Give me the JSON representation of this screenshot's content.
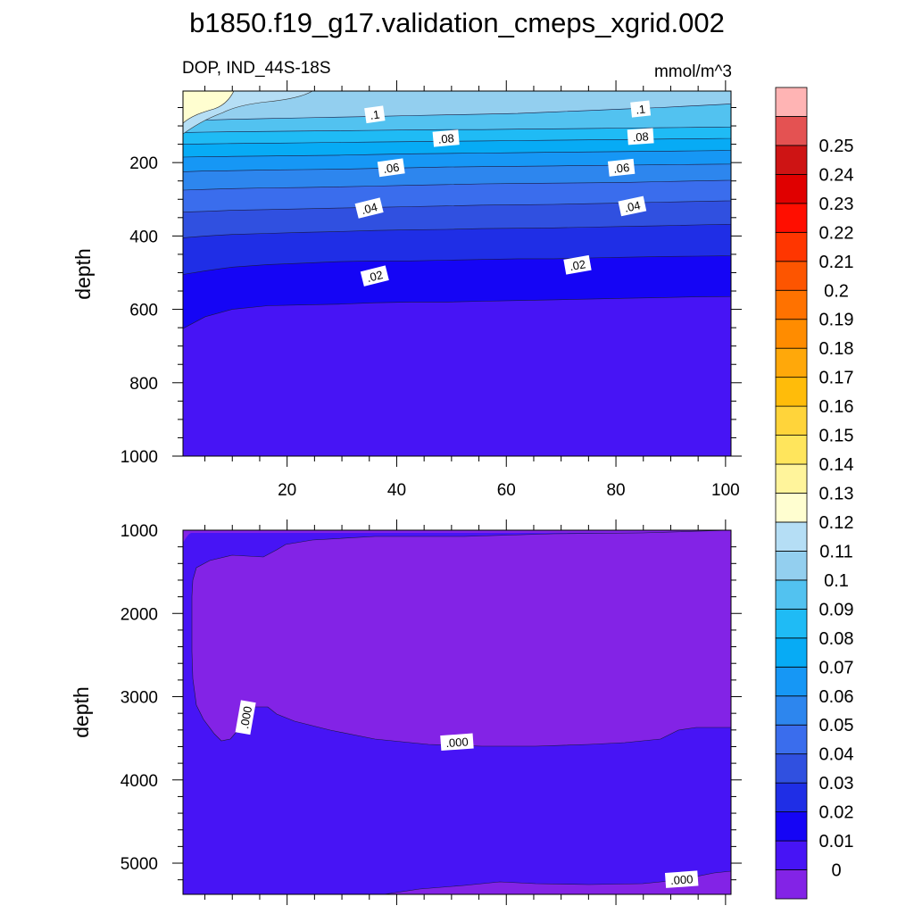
{
  "chart_data": {
    "type": "contour",
    "title": "b1850.f19_g17.validation_cmeps_xgrid.002",
    "variable_label": "DOP, IND_44S-18S",
    "units_label": "mmol/m^3",
    "colorbar": {
      "labels": [
        "0",
        "0.01",
        "0.02",
        "0.03",
        "0.04",
        "0.05",
        "0.06",
        "0.07",
        "0.08",
        "0.09",
        "0.1",
        "0.11",
        "0.12",
        "0.13",
        "0.14",
        "0.15",
        "0.16",
        "0.17",
        "0.18",
        "0.19",
        "0.2",
        "0.21",
        "0.22",
        "0.23",
        "0.24",
        "0.25"
      ],
      "colors": [
        "#8323e6",
        "#4714f5",
        "#1505f5",
        "#1f2ee6",
        "#3050e0",
        "#3a6ded",
        "#2d86ee",
        "#1697f5",
        "#07abf5",
        "#1fbbf5",
        "#52c2f0",
        "#93cfef",
        "#b5def5",
        "#fffed0",
        "#fff49b",
        "#ffe55c",
        "#ffd43a",
        "#ffbc0a",
        "#ffa80a",
        "#ff8c00",
        "#ff7200",
        "#fd5500",
        "#ff3600",
        "#ff0e00",
        "#e00000",
        "#ce1414",
        "#e45252",
        "#ffb4b4"
      ]
    },
    "panels": [
      {
        "name": "upper",
        "ylabel": "depth",
        "xlim": [
          1,
          101
        ],
        "ylim": [
          1000,
          5
        ],
        "xticks": [
          20,
          40,
          60,
          80,
          100
        ],
        "xtick_labels": [
          "20",
          "40",
          "60",
          "80",
          "100"
        ],
        "yticks": [
          200,
          400,
          600,
          800,
          1000
        ],
        "ytick_labels": [
          "200",
          "400",
          "600",
          "800",
          "1000"
        ],
        "contour_labels": [
          {
            "text": ".1",
            "x": 36,
            "y": 70
          },
          {
            "text": ".1",
            "x": 84.5,
            "y": 55
          },
          {
            "text": ".08",
            "x": 49,
            "y": 135
          },
          {
            "text": ".08",
            "x": 84.5,
            "y": 130
          },
          {
            "text": ".06",
            "x": 39,
            "y": 215
          },
          {
            "text": ".06",
            "x": 81,
            "y": 215
          },
          {
            "text": ".04",
            "x": 35,
            "y": 325
          },
          {
            "text": ".04",
            "x": 83,
            "y": 320
          },
          {
            "text": ".02",
            "x": 36,
            "y": 510
          },
          {
            "text": ".02",
            "x": 73,
            "y": 480
          }
        ]
      },
      {
        "name": "lower",
        "ylabel": "depth",
        "xlim": [
          1,
          101
        ],
        "ylim": [
          5375,
          1000
        ],
        "yticks": [
          1000,
          2000,
          3000,
          4000,
          5000
        ],
        "ytick_labels": [
          "1000",
          "2000",
          "3000",
          "4000",
          "5000"
        ],
        "contour_labels": [
          {
            "text": ".000",
            "x": 12.5,
            "y": 3250
          },
          {
            "text": ".000",
            "x": 51,
            "y": 3550
          },
          {
            "text": ".000",
            "x": 92,
            "y": 5200
          }
        ]
      }
    ]
  }
}
